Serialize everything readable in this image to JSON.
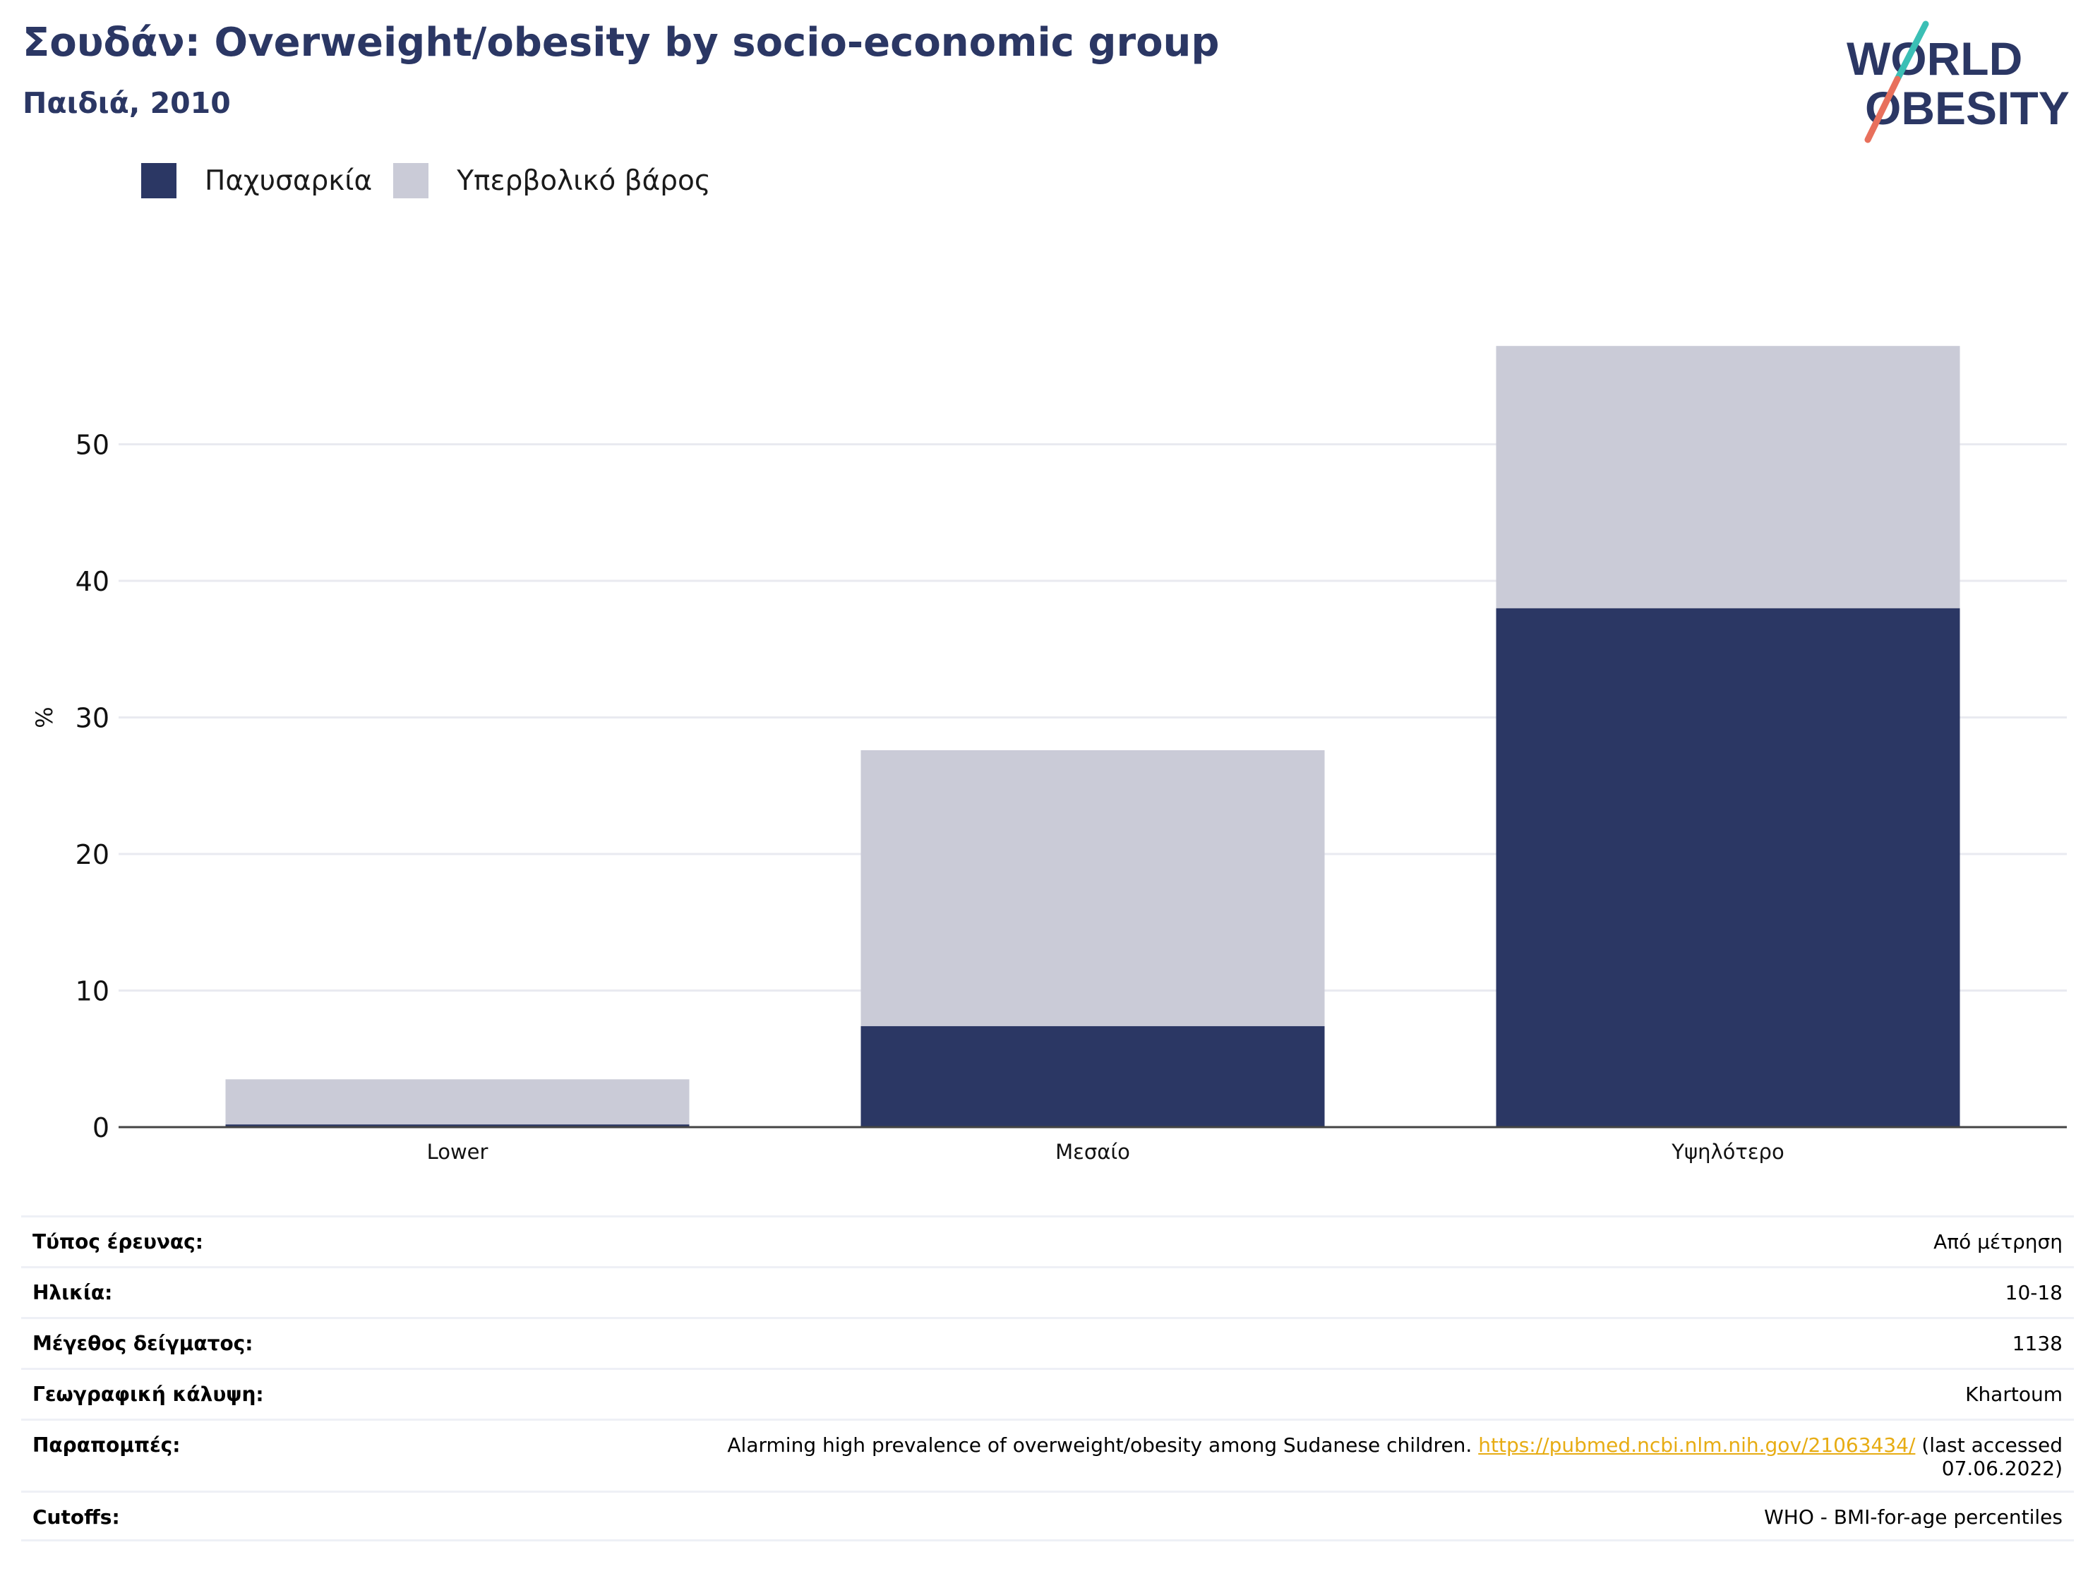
{
  "header": {
    "title": "Σουδάν: Overweight/obesity by socio-economic group",
    "subtitle": "Παιδιά, 2010"
  },
  "logo": {
    "line1": "WORLD",
    "line2": "OBESITY"
  },
  "colors": {
    "obesity": "#2b3764",
    "overweight": "#cacbd7",
    "title": "#2b3764",
    "link": "#e7ac13",
    "logo_teal": "#3bbfb5",
    "logo_coral": "#e8705c"
  },
  "chart_data": {
    "type": "bar",
    "stacked": true,
    "categories": [
      "Lower",
      "Μεσαίο",
      "Υψηλότερο"
    ],
    "series": [
      {
        "name": "Παχυσαρκία",
        "values": [
          0.2,
          7.4,
          38.0
        ]
      },
      {
        "name": "Υπερβολικό βάρος",
        "values": [
          3.3,
          20.2,
          19.2
        ]
      }
    ],
    "ylabel": "%",
    "ylim": [
      0,
      57.5
    ],
    "yticks": [
      0,
      10,
      20,
      30,
      40,
      50
    ],
    "grid": true,
    "legend": "top-left"
  },
  "info": {
    "rows": [
      {
        "label": "Τύπος έρευνας:",
        "value": "Από μέτρηση"
      },
      {
        "label": "Ηλικία:",
        "value": "10-18"
      },
      {
        "label": "Μέγεθος δείγματος:",
        "value": "1138"
      },
      {
        "label": "Γεωγραφική κάλυψη:",
        "value": "Khartoum"
      }
    ],
    "references": {
      "label": "Παραπομπές:",
      "text": "Alarming high prevalence of overweight/obesity among Sudanese children.",
      "link": "https://pubmed.ncbi.nlm.nih.gov/21063434/",
      "suffix": "(last accessed",
      "date": "07.06.2022)"
    },
    "cutoffs": {
      "label": "Cutoffs:",
      "value": "WHO - BMI-for-age percentiles"
    }
  }
}
